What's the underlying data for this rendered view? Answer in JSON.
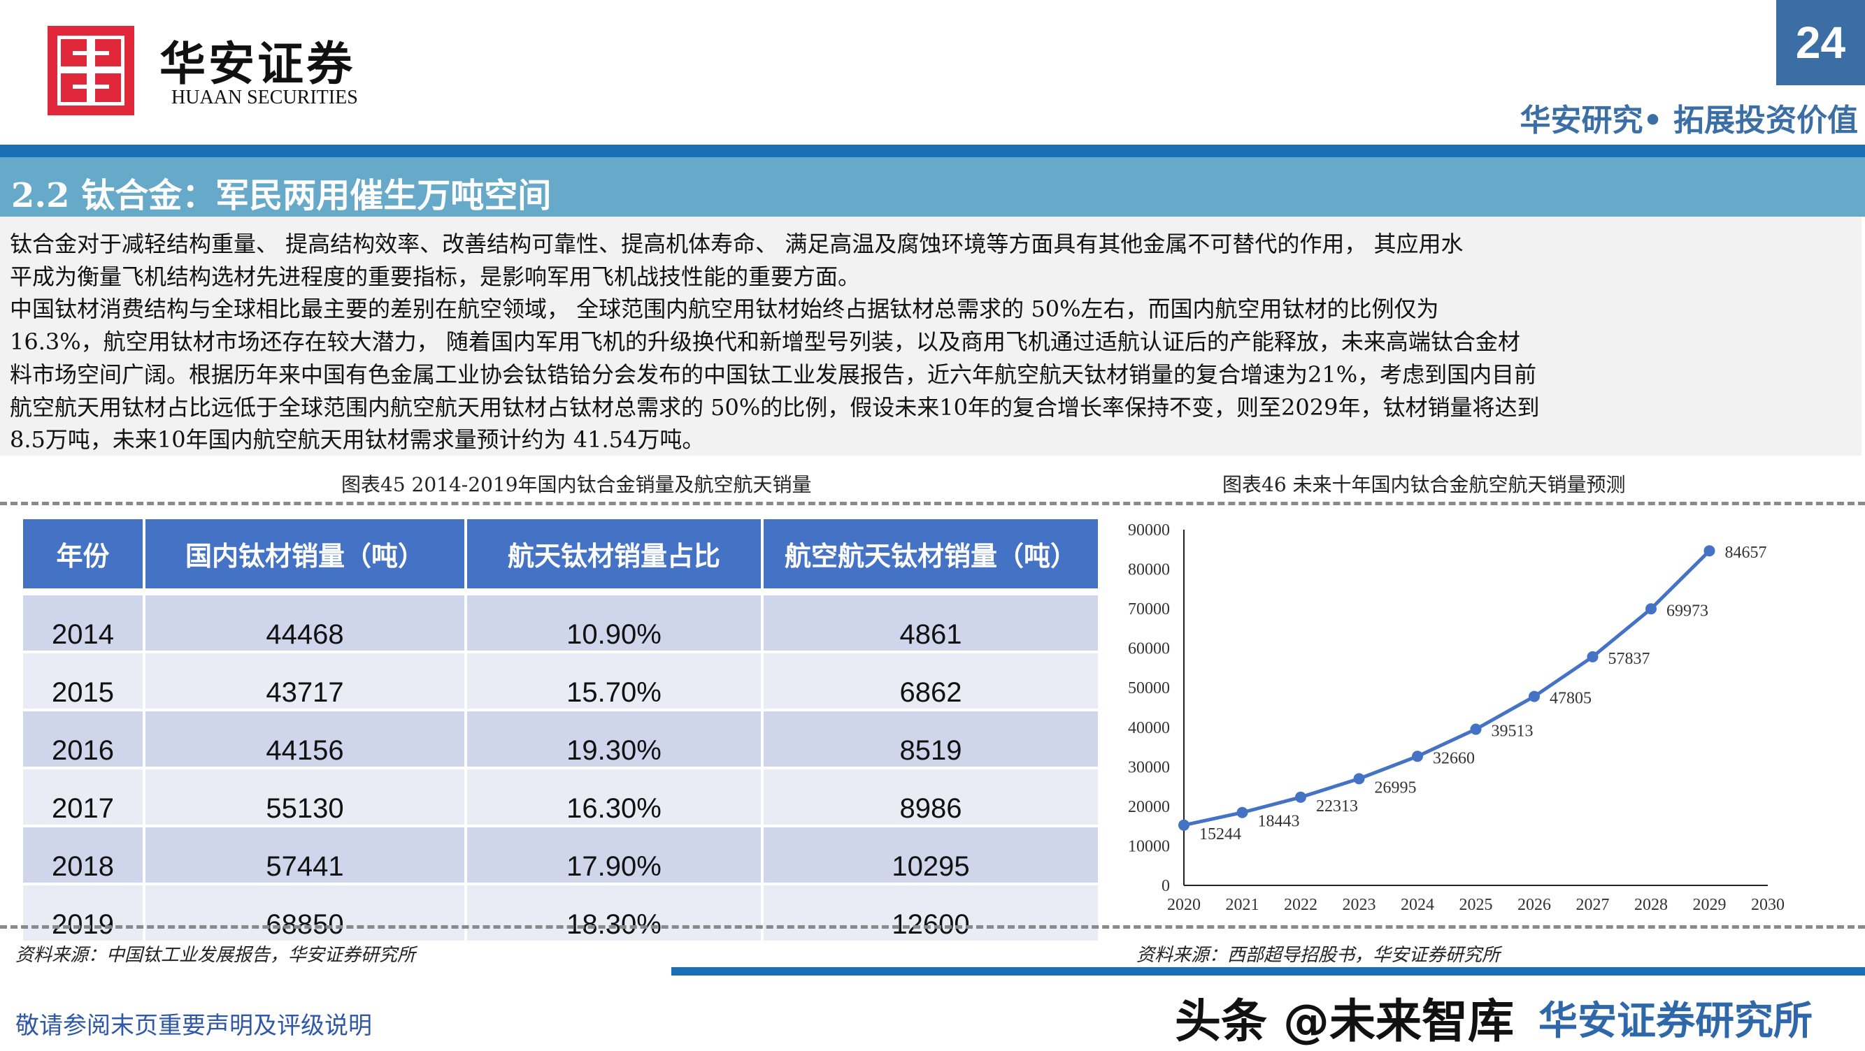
{
  "header": {
    "logo_cn": "华安证券",
    "logo_en": "HUAAN SECURITIES",
    "page_number": "24",
    "tagline": "华安研究• 拓展投资价值",
    "brand_color": "#e0283a",
    "accent_color": "#1a6fb5"
  },
  "section": {
    "title": "2.2 钛合金：军民两用催生万吨空间"
  },
  "body": {
    "lines": [
      "    钛合金对于减轻结构重量、 提高结构效率、改善结构可靠性、提高机体寿命、 满足高温及腐蚀环境等方面具有其他金属不可替代的作用， 其应用水",
      "平成为衡量飞机结构选材先进程度的重要指标，是影响军用飞机战技性能的重要方面。",
      "    中国钛材消费结构与全球相比最主要的差别在航空领域， 全球范围内航空用钛材始终占据钛材总需求的 50%左右，而国内航空用钛材的比例仅为",
      "16.3%，航空用钛材市场还存在较大潜力， 随着国内军用飞机的升级换代和新增型号列装，以及商用飞机通过适航认证后的产能释放，未来高端钛合金材",
      "料市场空间广阔。根据历年来中国有色金属工业协会钛锆铪分会发布的中国钛工业发展报告，近六年航空航天钛材销量的复合增速为21%，考虑到国内目前",
      "航空航天用钛材占比远低于全球范围内航空航天用钛材占钛材总需求的 50%的比例，假设未来10年的复合增长率保持不变，则至2029年，钛材销量将达到",
      "8.5万吨，未来10年国内航空航天用钛材需求量预计约为 41.54万吨。"
    ]
  },
  "table_figure": {
    "caption": "图表45 2014-2019年国内钛合金销量及航空航天销量",
    "headers": [
      "年份",
      "国内钛材销量（吨）",
      "航天钛材销量占比",
      "航空航天钛材销量（吨）"
    ],
    "rows": [
      [
        "2014",
        "44468",
        "10.90%",
        "4861"
      ],
      [
        "2015",
        "43717",
        "15.70%",
        "6862"
      ],
      [
        "2016",
        "44156",
        "19.30%",
        "8519"
      ],
      [
        "2017",
        "55130",
        "16.30%",
        "8986"
      ],
      [
        "2018",
        "57441",
        "17.90%",
        "10295"
      ],
      [
        "2019",
        "68850",
        "18.30%",
        "12600"
      ]
    ],
    "header_color": "#4472c4",
    "source": "资料来源：中国钛工业发展报告，华安证券研究所"
  },
  "chart_figure": {
    "caption": "图表46 未来十年国内钛合金航空航天销量预测",
    "source": "资料来源：西部超导招股书，华安证券研究所"
  },
  "chart_data": {
    "type": "line",
    "title": "",
    "xlabel": "",
    "ylabel": "",
    "x": [
      2020,
      2021,
      2022,
      2023,
      2024,
      2025,
      2026,
      2027,
      2028,
      2029
    ],
    "values": [
      15244,
      18443,
      22313,
      26995,
      32660,
      39513,
      47805,
      57837,
      69973,
      84657
    ],
    "x_ticks": [
      "2020",
      "2021",
      "2022",
      "2023",
      "2024",
      "2025",
      "2026",
      "2027",
      "2028",
      "2029",
      "2030"
    ],
    "y_ticks": [
      "0",
      "10000",
      "20000",
      "30000",
      "40000",
      "50000",
      "60000",
      "70000",
      "80000",
      "90000"
    ],
    "xlim": [
      2020,
      2030
    ],
    "ylim": [
      0,
      90000
    ],
    "grid": false,
    "data_labels": true,
    "color": "#4472c4"
  },
  "footer": {
    "disclaimer": "敬请参阅末页重要声明及评级说明",
    "watermark": "头条 @未来智库",
    "watermark_brand": "华安证券研究所"
  }
}
